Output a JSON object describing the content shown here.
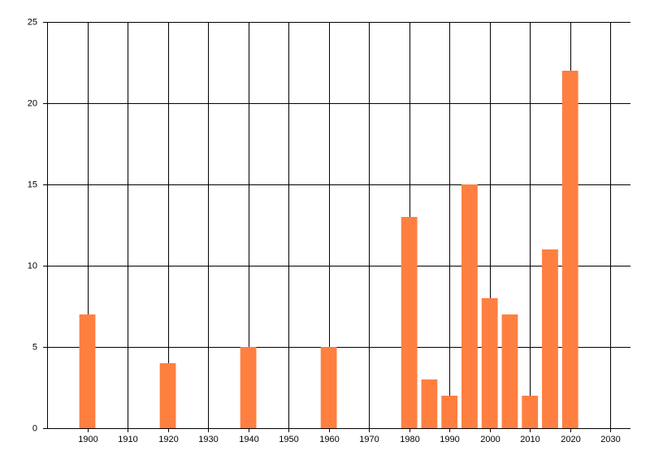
{
  "chart_data": {
    "type": "bar",
    "x": [
      1900,
      1920,
      1940,
      1960,
      1980,
      1985,
      1990,
      1995,
      2000,
      2005,
      2010,
      2015,
      2020
    ],
    "values": [
      7,
      4,
      5,
      5,
      13,
      3,
      2,
      15,
      8,
      7,
      2,
      11,
      22
    ],
    "color": "#ff7f40",
    "xlim": [
      1890,
      2035
    ],
    "xticks": [
      1900,
      1910,
      1920,
      1930,
      1940,
      1950,
      1960,
      1970,
      1980,
      1990,
      2000,
      2010,
      2020,
      2030
    ],
    "ylim": [
      0,
      25
    ],
    "yticks": [
      0,
      5,
      10,
      15,
      20,
      25
    ],
    "grid": true
  }
}
